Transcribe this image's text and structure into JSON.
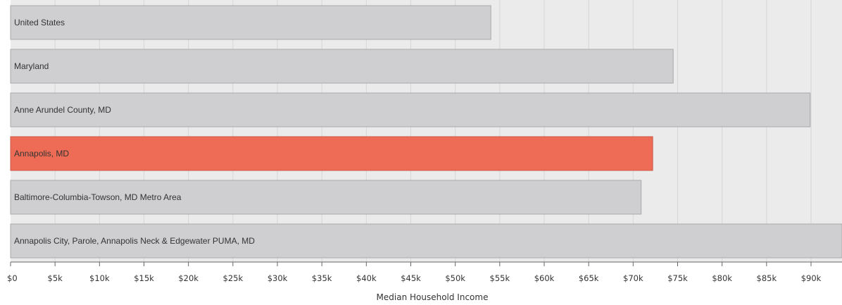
{
  "chart_data": {
    "type": "bar",
    "orientation": "horizontal",
    "xlabel": "Median Household Income",
    "xlim": [
      0,
      94000
    ],
    "x_ticks": [
      "$0",
      "$5k",
      "$10k",
      "$15k",
      "$20k",
      "$25k",
      "$30k",
      "$35k",
      "$40k",
      "$45k",
      "$50k",
      "$55k",
      "$60k",
      "$65k",
      "$70k",
      "$75k",
      "$80k",
      "$85k",
      "$90k"
    ],
    "categories": [
      "United States",
      "Maryland",
      "Anne Arundel County, MD",
      "Annapolis, MD",
      "Baltimore-Columbia-Towson, MD Metro Area",
      "Annapolis City, Parole, Annapolis Neck & Edgewater PUMA, MD"
    ],
    "values": [
      54000,
      74500,
      89900,
      72200,
      70900,
      94000
    ],
    "highlight": "Annapolis, MD",
    "grid": true,
    "colors": {
      "bar": "#cfcfd1",
      "bar_stroke": "#a8a8aa",
      "highlight": "#ee6c55",
      "highlight_stroke": "#c95a47",
      "plot_background": "#ebebeb",
      "grid": "#d6d6d6",
      "axis": "#666666"
    }
  }
}
